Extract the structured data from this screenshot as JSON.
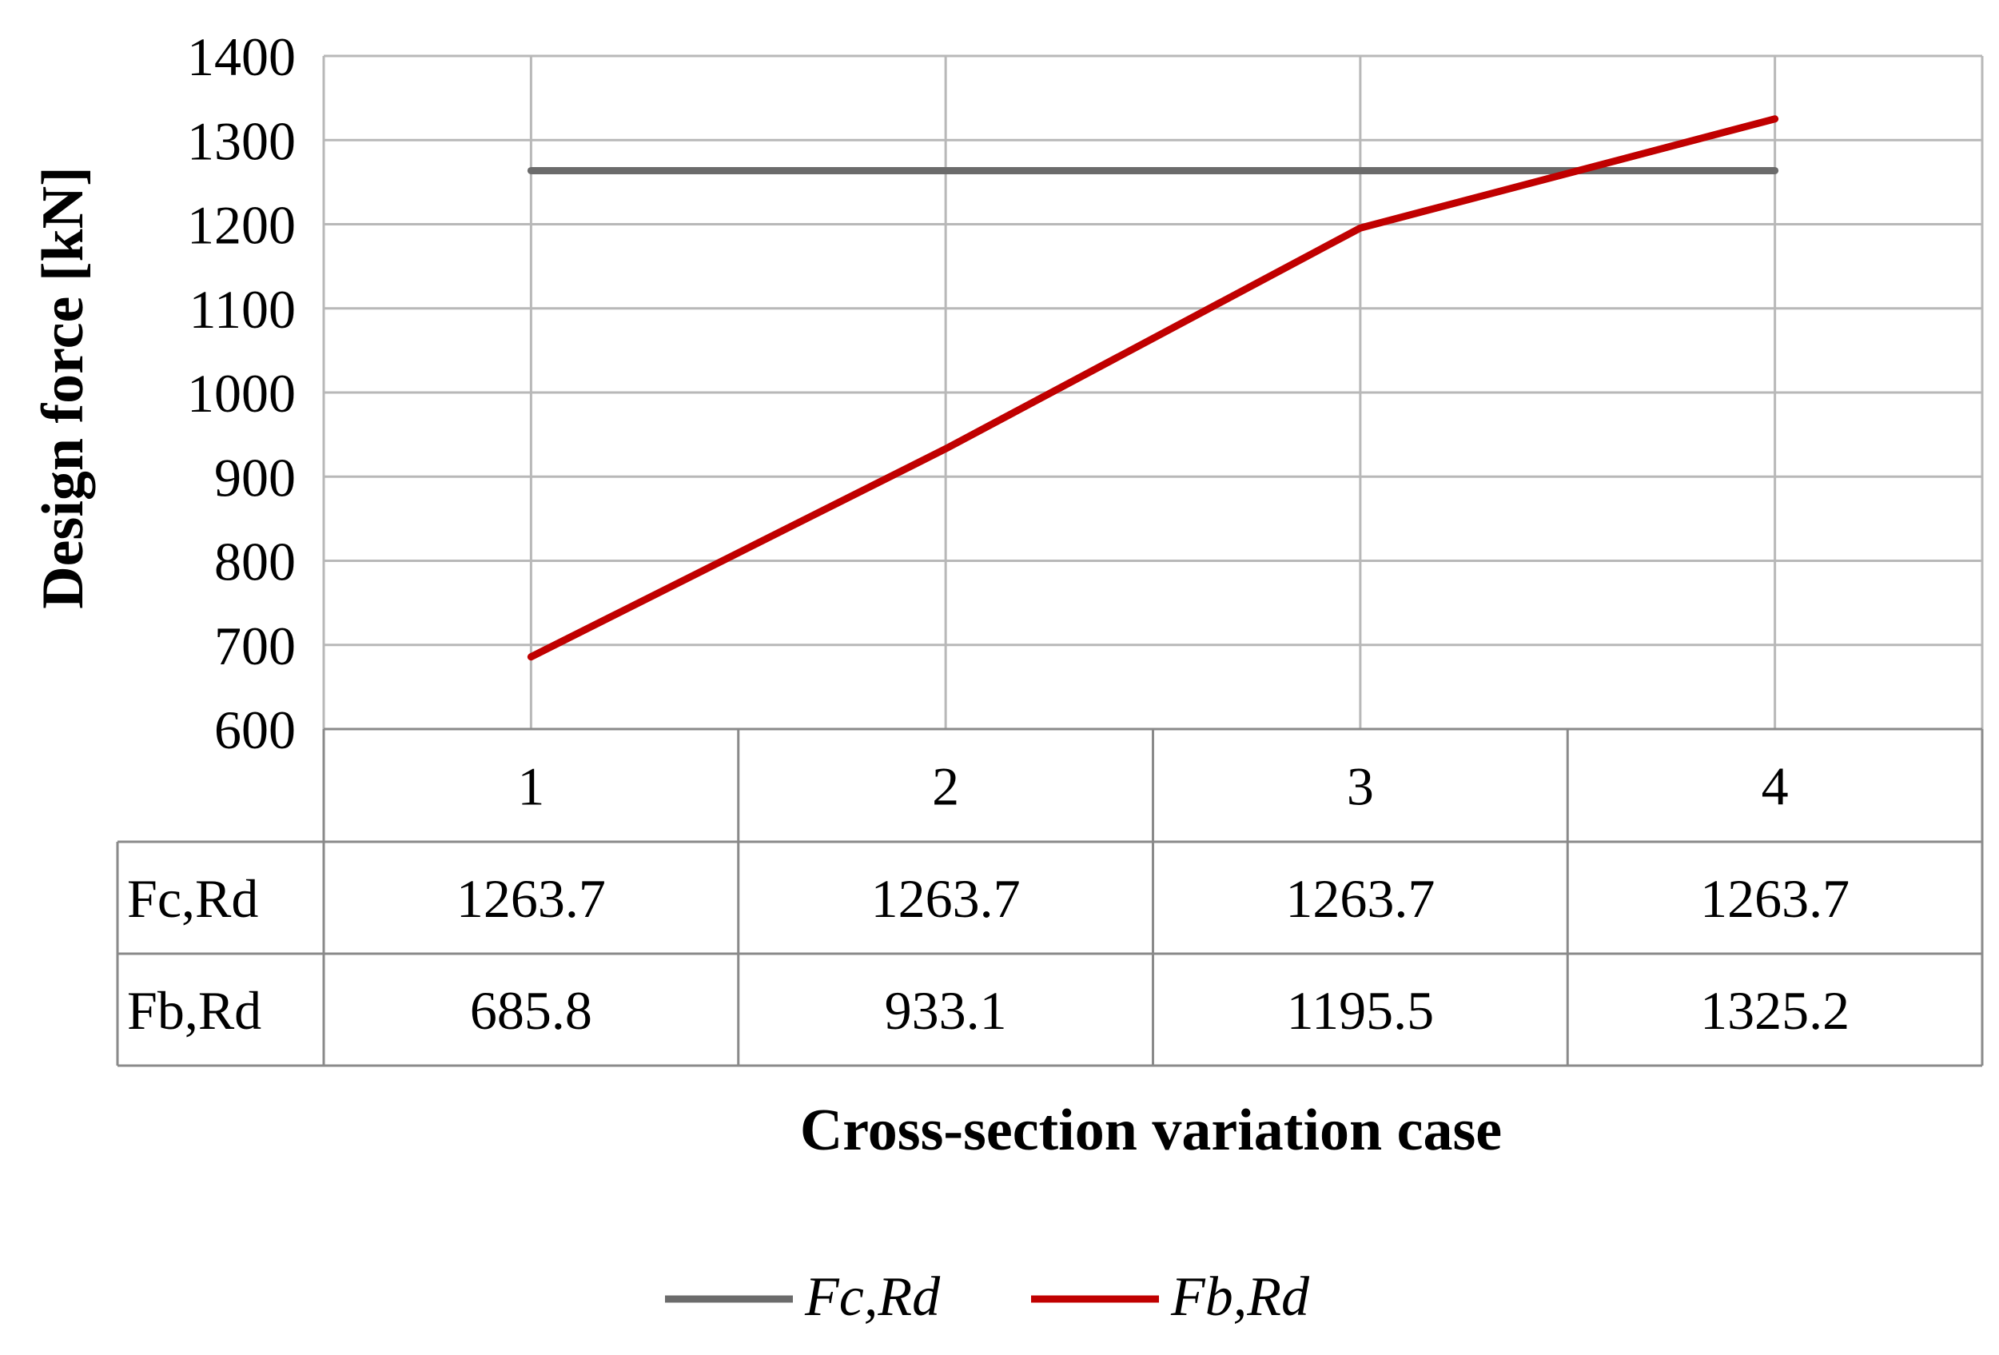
{
  "chart_data": {
    "type": "line",
    "title": "",
    "xlabel": "Cross-section variation case",
    "ylabel": "Design  force [kN]",
    "categories": [
      "1",
      "2",
      "3",
      "4"
    ],
    "ylim": [
      600,
      1400
    ],
    "yticks": [
      600,
      700,
      800,
      900,
      1000,
      1100,
      1200,
      1300,
      1400
    ],
    "grid": true,
    "legend_position": "bottom-center",
    "series": [
      {
        "name": "Fc,Rd",
        "table_label": "Fc,Rd",
        "color": "#6b6b6b",
        "values": [
          1263.7,
          1263.7,
          1263.7,
          1263.7
        ],
        "labels": [
          "1263.7",
          "1263.7",
          "1263.7",
          "1263.7"
        ]
      },
      {
        "name": "Fb,Rd",
        "table_label": "Fb,Rd",
        "color": "#c00000",
        "values": [
          685.8,
          933.1,
          1195.5,
          1325.2
        ],
        "labels": [
          "685.8",
          "933.1",
          "1195.5",
          "1325.2"
        ]
      }
    ]
  }
}
